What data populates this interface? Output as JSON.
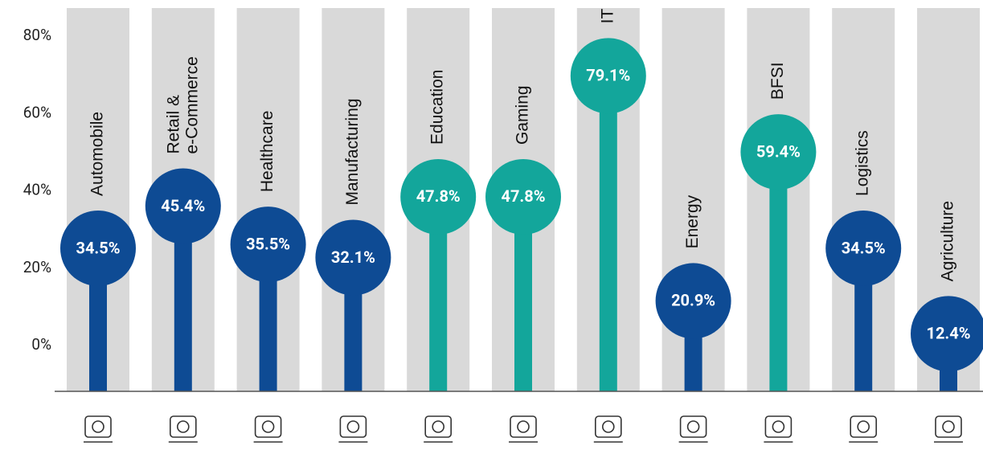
{
  "chart_data": {
    "type": "lollipop",
    "categories": [
      "Automobile",
      "Retail &\ne-Commerce",
      "Healthcare",
      "Manufacturing",
      "Education",
      "Gaming",
      "IT",
      "Energy",
      "BFSI",
      "Logistics",
      "Agriculture"
    ],
    "values": [
      34.5,
      45.4,
      35.5,
      32.1,
      47.8,
      47.8,
      79.1,
      20.9,
      59.4,
      34.5,
      12.4
    ],
    "value_labels": [
      "34.5%",
      "45.4%",
      "35.5%",
      "32.1%",
      "47.8%",
      "47.8%",
      "79.1%",
      "20.9%",
      "59.4%",
      "34.5%",
      "12.4%"
    ],
    "colors": [
      "#0e4b94",
      "#0e4b94",
      "#0e4b94",
      "#0e4b94",
      "#13a69b",
      "#13a69b",
      "#13a69b",
      "#0e4b94",
      "#13a69b",
      "#0e4b94",
      "#0e4b94"
    ],
    "ylim": [
      0,
      80
    ],
    "yticks": [
      {
        "value": 0,
        "label": "0%"
      },
      {
        "value": 20,
        "label": "20%"
      },
      {
        "value": 40,
        "label": "40%"
      },
      {
        "value": 60,
        "label": "60%"
      },
      {
        "value": 80,
        "label": "80%"
      }
    ]
  }
}
